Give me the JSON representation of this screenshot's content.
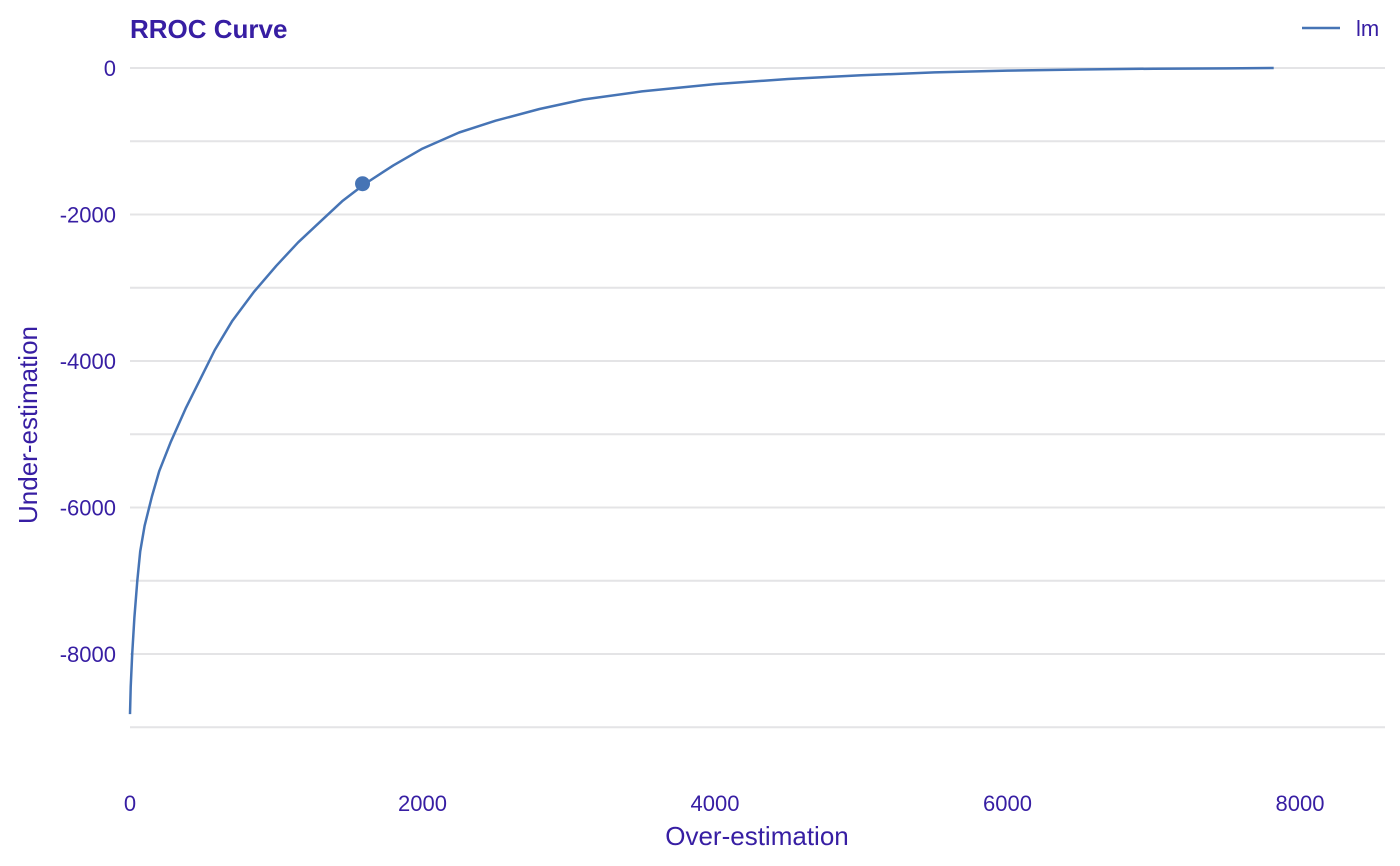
{
  "chart_data": {
    "type": "line",
    "title": "RROC Curve",
    "xlabel": "Over-estimation",
    "ylabel": "Under-estimation",
    "xlim": [
      0,
      8800
    ],
    "ylim": [
      -9600,
      0
    ],
    "x_ticks": [
      0,
      2000,
      4000,
      6000,
      8000
    ],
    "y_ticks": [
      0,
      -2000,
      -4000,
      -6000,
      -8000
    ],
    "y_minor_gridlines": [
      -1000,
      -3000,
      -5000,
      -7000,
      -9000
    ],
    "grid": "horizontal",
    "legend_position": "top-right",
    "colors": {
      "line": "#4674b5",
      "text": "#371ea3",
      "grid": "#e4e4e6"
    },
    "series": [
      {
        "name": "lm",
        "x": [
          0,
          5,
          15,
          30,
          50,
          70,
          100,
          150,
          200,
          280,
          380,
          480,
          580,
          700,
          850,
          1000,
          1150,
          1300,
          1450,
          1600,
          1800,
          2000,
          2250,
          2500,
          2800,
          3100,
          3500,
          4000,
          4500,
          5000,
          5500,
          6000,
          6500,
          7000,
          7500,
          7820
        ],
        "y": [
          -8820,
          -8450,
          -8000,
          -7500,
          -7000,
          -6600,
          -6250,
          -5850,
          -5500,
          -5100,
          -4650,
          -4250,
          -3850,
          -3450,
          -3050,
          -2700,
          -2380,
          -2100,
          -1820,
          -1590,
          -1330,
          -1100,
          -880,
          -720,
          -560,
          -430,
          -320,
          -220,
          -150,
          -100,
          -60,
          -35,
          -20,
          -10,
          -5,
          0
        ]
      }
    ],
    "highlight_point": {
      "x": 1590,
      "y": -1580
    }
  }
}
